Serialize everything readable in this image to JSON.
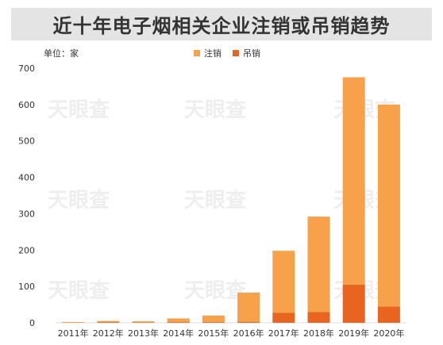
{
  "chart_data": {
    "type": "bar",
    "stacked": true,
    "title": "近十年电子烟相关企业注销或吊销趋势",
    "unit": "单位：家",
    "categories": [
      "2011年",
      "2012年",
      "2013年",
      "2014年",
      "2015年",
      "2016年",
      "2017年",
      "2018年",
      "2019年",
      "2020年"
    ],
    "series": [
      {
        "name": "吊销",
        "color": "#e8641f",
        "values": [
          0,
          2,
          1,
          2,
          2,
          3,
          28,
          30,
          105,
          45
        ]
      },
      {
        "name": "注销",
        "color": "#f7a14a",
        "values": [
          2,
          3,
          3,
          10,
          18,
          80,
          170,
          262,
          570,
          555
        ]
      }
    ],
    "legend_order": [
      "注销",
      "吊销"
    ],
    "ylim": [
      0,
      700
    ],
    "yticks": [
      0,
      100,
      200,
      300,
      400,
      500,
      600,
      700
    ],
    "grid": false,
    "legend_position": "top-center"
  },
  "watermark": "天眼查"
}
